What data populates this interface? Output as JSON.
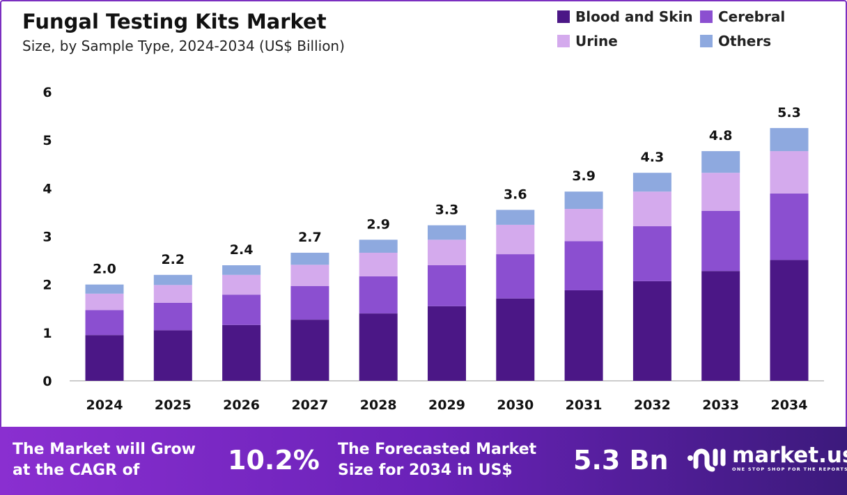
{
  "chart_data": {
    "type": "stacked-bar",
    "title": "Fungal Testing Kits Market",
    "subtitle": "Size, by Sample Type, 2024-2034 (US$ Billion)",
    "categories": [
      "2024",
      "2025",
      "2026",
      "2027",
      "2028",
      "2029",
      "2030",
      "2031",
      "2032",
      "2033",
      "2034"
    ],
    "series": [
      {
        "name": "Blood and Skin",
        "color": "#4b1786",
        "values": [
          0.95,
          1.05,
          1.16,
          1.27,
          1.4,
          1.55,
          1.71,
          1.88,
          2.07,
          2.28,
          2.51
        ]
      },
      {
        "name": "Cerebral",
        "color": "#8b4fd0",
        "values": [
          0.52,
          0.57,
          0.63,
          0.7,
          0.77,
          0.85,
          0.92,
          1.02,
          1.14,
          1.25,
          1.38
        ]
      },
      {
        "name": "Urine",
        "color": "#d4aaed",
        "values": [
          0.34,
          0.37,
          0.41,
          0.44,
          0.49,
          0.53,
          0.61,
          0.67,
          0.72,
          0.79,
          0.88
        ]
      },
      {
        "name": "Others",
        "color": "#8ea9df",
        "values": [
          0.19,
          0.21,
          0.2,
          0.25,
          0.27,
          0.3,
          0.31,
          0.36,
          0.39,
          0.45,
          0.48
        ]
      }
    ],
    "totals_labels": [
      "2.0",
      "2.2",
      "2.4",
      "2.7",
      "2.9",
      "3.3",
      "3.6",
      "3.9",
      "4.3",
      "4.8",
      "5.3"
    ],
    "yticks": [
      "0",
      "1",
      "2",
      "3",
      "4",
      "5",
      "6"
    ],
    "ylim": [
      0,
      6
    ],
    "grid": false,
    "legend": "top-right"
  },
  "footer": {
    "cagr_text": "The Market will Grow at the CAGR of",
    "cagr_line1": "The Market will Grow",
    "cagr_line2": "at the CAGR of",
    "cagr_value": "10.2%",
    "forecast_line1": "The Forecasted Market",
    "forecast_line2": "Size for 2034 in US$",
    "forecast_value": "5.3 Bn",
    "logo": "market.us",
    "logo_tagline": "ONE STOP SHOP FOR THE REPORTS"
  }
}
